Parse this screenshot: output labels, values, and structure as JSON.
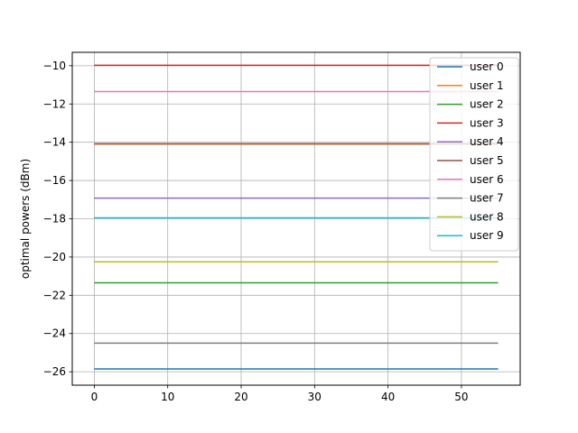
{
  "chart_data": {
    "type": "line",
    "title": "",
    "xlabel": "",
    "ylabel": "optimal powers (dBm)",
    "xlim": [
      -3,
      58
    ],
    "ylim": [
      -26.7,
      -9.3
    ],
    "xticks": [
      0,
      10,
      20,
      30,
      40,
      50
    ],
    "yticks": [
      -26,
      -24,
      -22,
      -20,
      -18,
      -16,
      -14,
      -12,
      -10
    ],
    "grid": true,
    "legend_position": "top-right",
    "x_range": [
      0,
      55
    ],
    "series": [
      {
        "name": "user 0",
        "color": "#1f77b4",
        "value": -25.85
      },
      {
        "name": "user 1",
        "color": "#ff7f0e",
        "value": -14.1
      },
      {
        "name": "user 2",
        "color": "#2ca02c",
        "value": -21.35
      },
      {
        "name": "user 3",
        "color": "#d62728",
        "value": -9.98
      },
      {
        "name": "user 4",
        "color": "#9467bd",
        "value": -16.92
      },
      {
        "name": "user 5",
        "color": "#8c564b",
        "value": -14.08
      },
      {
        "name": "user 6",
        "color": "#e377c2",
        "value": -11.35
      },
      {
        "name": "user 7",
        "color": "#7f7f7f",
        "value": -24.5
      },
      {
        "name": "user 8",
        "color": "#bcbd22",
        "value": -20.25
      },
      {
        "name": "user 9",
        "color": "#17becf",
        "value": -17.95
      }
    ]
  }
}
